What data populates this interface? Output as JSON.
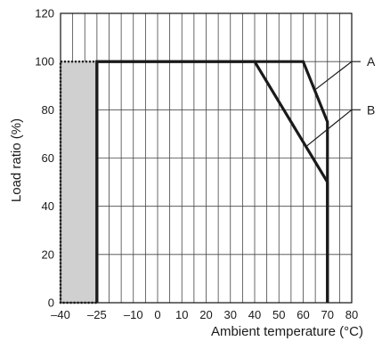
{
  "chart_data": {
    "type": "line",
    "xlabel": "Ambient temperature (°C)",
    "ylabel": "Load ratio (%)",
    "xlim": [
      -40,
      80
    ],
    "ylim": [
      0,
      120
    ],
    "x_ticks": [
      -40,
      -25,
      -10,
      0,
      10,
      20,
      30,
      40,
      50,
      60,
      70,
      80
    ],
    "x_tick_labels": [
      "–40",
      "–25",
      "–10",
      "0",
      "10",
      "20",
      "30",
      "40",
      "50",
      "60",
      "70",
      "80"
    ],
    "y_ticks": [
      0,
      20,
      40,
      60,
      80,
      100,
      120
    ],
    "y_tick_labels": [
      "0",
      "20",
      "40",
      "60",
      "80",
      "100",
      "120"
    ],
    "grid": true,
    "grid_x_step": 5,
    "grid_y_step": 20,
    "shaded_region": {
      "x": [
        -40,
        -25
      ],
      "y": [
        0,
        100
      ],
      "color": "#d0d0d0"
    },
    "series": [
      {
        "name": "A",
        "x": [
          -25,
          -25,
          60,
          70,
          70
        ],
        "y": [
          0,
          100,
          100,
          75,
          0
        ]
      },
      {
        "name": "B",
        "x": [
          -25,
          -25,
          40,
          70,
          70
        ],
        "y": [
          0,
          100,
          100,
          50,
          0
        ]
      }
    ],
    "annotations": [
      {
        "series": "A",
        "label": "A",
        "at": [
          64.5,
          88
        ],
        "text_at": [
          80,
          100
        ]
      },
      {
        "series": "B",
        "label": "B",
        "at": [
          61.5,
          65
        ],
        "text_at": [
          80,
          80
        ]
      }
    ]
  }
}
